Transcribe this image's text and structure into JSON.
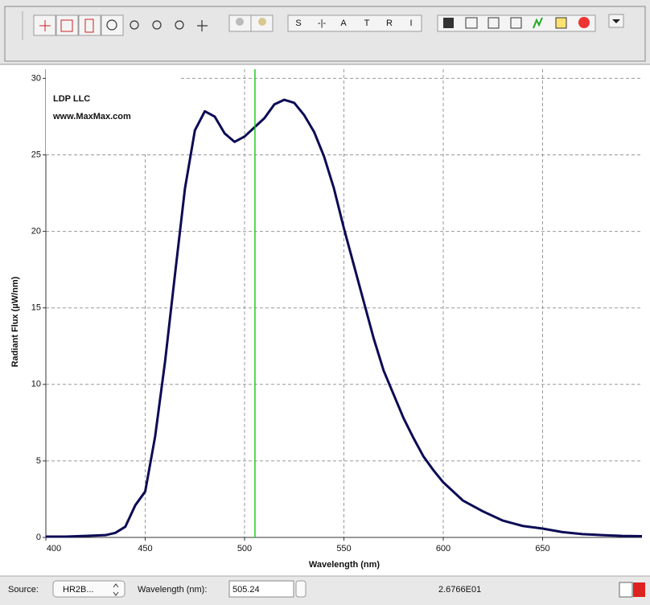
{
  "toolbar": {
    "letter_buttons": [
      "S",
      "A",
      "T",
      "R",
      "I"
    ]
  },
  "chart_data": {
    "type": "line",
    "logo": {
      "title": "LDP LLC",
      "url": "www.MaxMax.com"
    },
    "x_label": "Wavelength (nm)",
    "y_label": "Radiant Flux (µW/nm)",
    "x": [
      400,
      410,
      420,
      430,
      435,
      440,
      445,
      450,
      455,
      460,
      465,
      470,
      475,
      480,
      485,
      490,
      495,
      500,
      505,
      510,
      515,
      520,
      525,
      530,
      535,
      540,
      545,
      550,
      555,
      560,
      565,
      570,
      575,
      580,
      585,
      590,
      595,
      600,
      610,
      620,
      630,
      640,
      650,
      660,
      670,
      680,
      690,
      700
    ],
    "values": [
      0.05,
      0.05,
      0.1,
      0.15,
      0.3,
      0.7,
      2.1,
      3.0,
      6.6,
      11.5,
      17.2,
      22.8,
      26.6,
      27.85,
      27.5,
      26.4,
      25.85,
      26.2,
      26.8,
      27.4,
      28.3,
      28.6,
      28.4,
      27.6,
      26.5,
      24.9,
      22.8,
      20.2,
      17.8,
      15.4,
      13.0,
      10.9,
      9.35,
      7.8,
      6.5,
      5.3,
      4.4,
      3.6,
      2.4,
      1.7,
      1.1,
      0.75,
      0.58,
      0.35,
      0.22,
      0.15,
      0.1,
      0.08
    ],
    "color": "#0b0b55",
    "xlim": [
      400,
      700
    ],
    "ylim": [
      0,
      30.6
    ],
    "xticks": [
      400,
      450,
      500,
      550,
      600,
      650
    ],
    "yticks": [
      0,
      5,
      10,
      15,
      20,
      25,
      30
    ],
    "grid": true,
    "cursor": 505.24,
    "cursor_color": "#22cc22"
  },
  "status_bar": {
    "source_label": "Source:",
    "source_value": "HR2B...",
    "wavelength_label": "Wavelength (nm):",
    "readout": "2.6766E01"
  }
}
